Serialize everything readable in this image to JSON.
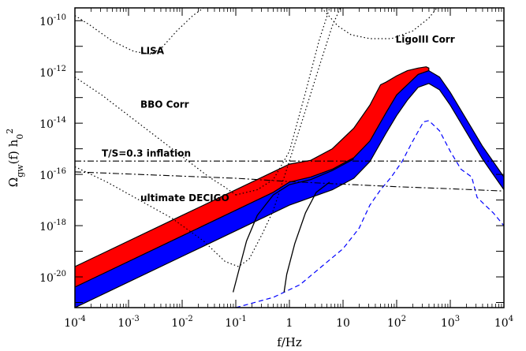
{
  "chart_data": {
    "type": "area",
    "title": "",
    "xlabel": "f/Hz",
    "ylabel": "Ω_gw(f) h_0^2",
    "xscale": "log",
    "yscale": "log",
    "xlim_log10": [
      -4,
      4
    ],
    "ylim_log10": [
      -21.2,
      -9.5
    ],
    "x_tick_exponents": [
      "-4",
      "-3",
      "-2",
      "-1",
      "",
      "",
      "2",
      "3",
      "4"
    ],
    "x_tick_labels_plain": [
      "",
      "",
      "",
      "",
      "1",
      "10",
      "",
      "",
      ""
    ],
    "y_tick_exponents": [
      "-10",
      "-12",
      "-14",
      "-16",
      "-18",
      "-20"
    ],
    "annotations": [
      {
        "text": "LISA",
        "at_log10": [
          -2.78,
          -11.3
        ]
      },
      {
        "text": "BBO Corr",
        "at_log10": [
          -2.78,
          -13.4
        ]
      },
      {
        "text": "T/S=0.3 inflation",
        "at_log10": [
          -3.5,
          -15.3
        ]
      },
      {
        "text": "ultimate DECIGO",
        "at_log10": [
          -2.78,
          -17.05
        ]
      },
      {
        "text": "LigoIII Corr",
        "at_log10": [
          1.98,
          -10.85
        ]
      }
    ],
    "series": [
      {
        "style": "red-band",
        "color": "#ff0000",
        "upper_log10": [
          [
            -4,
            -19.6
          ],
          [
            -2,
            -17.6
          ],
          [
            0,
            -15.6
          ],
          [
            0.4,
            -15.45
          ],
          [
            0.8,
            -15.0
          ],
          [
            1.2,
            -14.2
          ],
          [
            1.5,
            -13.3
          ],
          [
            1.7,
            -12.5
          ],
          [
            1.8,
            -12.4
          ],
          [
            2.0,
            -12.15
          ],
          [
            2.2,
            -11.95
          ],
          [
            2.4,
            -11.85
          ],
          [
            2.55,
            -11.8
          ],
          [
            2.6,
            -11.85
          ]
        ],
        "lower_log10": [
          [
            -4,
            -20.4
          ],
          [
            -2,
            -18.4
          ],
          [
            -0.3,
            -16.7
          ],
          [
            0,
            -16.3
          ],
          [
            0.4,
            -16.1
          ],
          [
            0.8,
            -15.8
          ],
          [
            1.2,
            -15.35
          ],
          [
            1.5,
            -14.7
          ],
          [
            1.8,
            -13.6
          ],
          [
            2.0,
            -12.9
          ],
          [
            2.2,
            -12.5
          ],
          [
            2.4,
            -12.1
          ],
          [
            2.6,
            -11.95
          ]
        ]
      },
      {
        "style": "blue-band",
        "color": "#0000ff",
        "upper_log10": [
          [
            -4,
            -20.4
          ],
          [
            -2,
            -18.4
          ],
          [
            -0.3,
            -16.7
          ],
          [
            0,
            -16.3
          ],
          [
            0.4,
            -16.1
          ],
          [
            0.8,
            -15.8
          ],
          [
            1.2,
            -15.35
          ],
          [
            1.5,
            -14.7
          ],
          [
            1.8,
            -13.6
          ],
          [
            2.0,
            -12.9
          ],
          [
            2.2,
            -12.5
          ],
          [
            2.4,
            -12.1
          ],
          [
            2.6,
            -11.95
          ],
          [
            2.8,
            -12.2
          ],
          [
            3.0,
            -12.8
          ],
          [
            3.2,
            -13.5
          ],
          [
            3.4,
            -14.2
          ],
          [
            3.6,
            -14.9
          ],
          [
            3.8,
            -15.5
          ],
          [
            4.0,
            -16.1
          ]
        ],
        "lower_log10": [
          [
            -4,
            -21.2
          ],
          [
            -2,
            -19.2
          ],
          [
            0,
            -17.2
          ],
          [
            0.4,
            -16.9
          ],
          [
            0.8,
            -16.6
          ],
          [
            1.2,
            -16.15
          ],
          [
            1.5,
            -15.5
          ],
          [
            1.8,
            -14.4
          ],
          [
            2.0,
            -13.7
          ],
          [
            2.2,
            -13.1
          ],
          [
            2.4,
            -12.6
          ],
          [
            2.6,
            -12.45
          ],
          [
            2.8,
            -12.7
          ],
          [
            3.0,
            -13.3
          ],
          [
            3.2,
            -14.0
          ],
          [
            3.4,
            -14.7
          ],
          [
            3.6,
            -15.4
          ],
          [
            3.8,
            -16.0
          ],
          [
            4.0,
            -16.6
          ]
        ]
      },
      {
        "style": "dashed-blue",
        "color": "#0000ff",
        "points_log10": [
          [
            -1.0,
            -21.2
          ],
          [
            -0.3,
            -20.8
          ],
          [
            0.2,
            -20.3
          ],
          [
            0.6,
            -19.6
          ],
          [
            1.0,
            -18.9
          ],
          [
            1.3,
            -18.1
          ],
          [
            1.5,
            -17.2
          ],
          [
            1.7,
            -16.6
          ],
          [
            1.9,
            -16.1
          ],
          [
            2.1,
            -15.5
          ],
          [
            2.3,
            -14.7
          ],
          [
            2.5,
            -13.95
          ],
          [
            2.6,
            -13.9
          ],
          [
            2.8,
            -14.3
          ],
          [
            3.0,
            -15.1
          ],
          [
            3.2,
            -15.8
          ],
          [
            3.4,
            -16.1
          ],
          [
            3.5,
            -16.9
          ],
          [
            3.65,
            -17.2
          ],
          [
            3.8,
            -17.5
          ],
          [
            4.0,
            -18.0
          ]
        ]
      },
      {
        "style": "dashdot-upper",
        "points_log10": [
          [
            -4,
            -15.48
          ],
          [
            4,
            -15.48
          ]
        ]
      },
      {
        "style": "dashdot-lower",
        "points_log10": [
          [
            -4,
            -15.9
          ],
          [
            -1,
            -16.15
          ],
          [
            0,
            -16.28
          ],
          [
            1,
            -16.38
          ],
          [
            2,
            -16.48
          ],
          [
            3,
            -16.56
          ],
          [
            4,
            -16.65
          ]
        ]
      },
      {
        "style": "solid-black",
        "points_log10": [
          [
            -1.05,
            -20.6
          ],
          [
            -0.95,
            -19.8
          ],
          [
            -0.8,
            -18.6
          ],
          [
            -0.6,
            -17.6
          ],
          [
            -0.3,
            -16.8
          ],
          [
            0,
            -16.4
          ],
          [
            0.4,
            -16.2
          ],
          [
            0.8,
            -15.85
          ],
          [
            1.2,
            -15.4
          ]
        ]
      },
      {
        "style": "solid-black",
        "points_log10": [
          [
            -0.1,
            -20.6
          ],
          [
            -0.05,
            -19.9
          ],
          [
            0.1,
            -18.7
          ],
          [
            0.3,
            -17.5
          ],
          [
            0.5,
            -16.7
          ],
          [
            0.75,
            -16.3
          ]
        ]
      },
      {
        "style": "dotted-lisa",
        "points_log10": [
          [
            -4,
            -9.8
          ],
          [
            -3.7,
            -10.2
          ],
          [
            -3.3,
            -10.8
          ],
          [
            -2.9,
            -11.2
          ],
          [
            -2.6,
            -11.3
          ],
          [
            -2.4,
            -11.1
          ],
          [
            -2.1,
            -10.4
          ],
          [
            -1.8,
            -9.8
          ],
          [
            -1.6,
            -9.5
          ]
        ]
      },
      {
        "style": "dotted-bbo",
        "points_log10": [
          [
            -4,
            -12.2
          ],
          [
            -3.5,
            -12.9
          ],
          [
            -3.0,
            -13.7
          ],
          [
            -2.5,
            -14.5
          ],
          [
            -2.0,
            -15.3
          ],
          [
            -1.5,
            -16.1
          ],
          [
            -1.2,
            -16.5
          ],
          [
            -1.0,
            -16.8
          ]
        ]
      },
      {
        "style": "dotted-decigo",
        "points_log10": [
          [
            -4,
            -15.7
          ],
          [
            -3.4,
            -16.3
          ],
          [
            -2.8,
            -17.0
          ],
          [
            -2.2,
            -17.7
          ],
          [
            -1.6,
            -18.6
          ],
          [
            -1.2,
            -19.4
          ],
          [
            -0.95,
            -19.6
          ],
          [
            -0.75,
            -19.3
          ],
          [
            -0.5,
            -18.3
          ],
          [
            -0.3,
            -17.4
          ],
          [
            -0.05,
            -15.8
          ],
          [
            0.3,
            -13.5
          ],
          [
            0.6,
            -11.5
          ],
          [
            0.8,
            -10.2
          ],
          [
            0.95,
            -9.5
          ]
        ]
      },
      {
        "style": "dotted-bbo-right",
        "points_log10": [
          [
            -1.0,
            -16.8
          ],
          [
            -0.6,
            -16.6
          ],
          [
            -0.3,
            -16.2
          ],
          [
            0,
            -15.1
          ],
          [
            0.3,
            -12.8
          ],
          [
            0.55,
            -10.8
          ],
          [
            0.75,
            -9.5
          ]
        ]
      },
      {
        "style": "dotted-ligo",
        "points_log10": [
          [
            0.6,
            -9.5
          ],
          [
            0.9,
            -10.2
          ],
          [
            1.15,
            -10.55
          ],
          [
            1.5,
            -10.7
          ],
          [
            1.9,
            -10.7
          ],
          [
            2.3,
            -10.4
          ],
          [
            2.6,
            -9.9
          ],
          [
            2.75,
            -9.5
          ]
        ]
      }
    ]
  }
}
